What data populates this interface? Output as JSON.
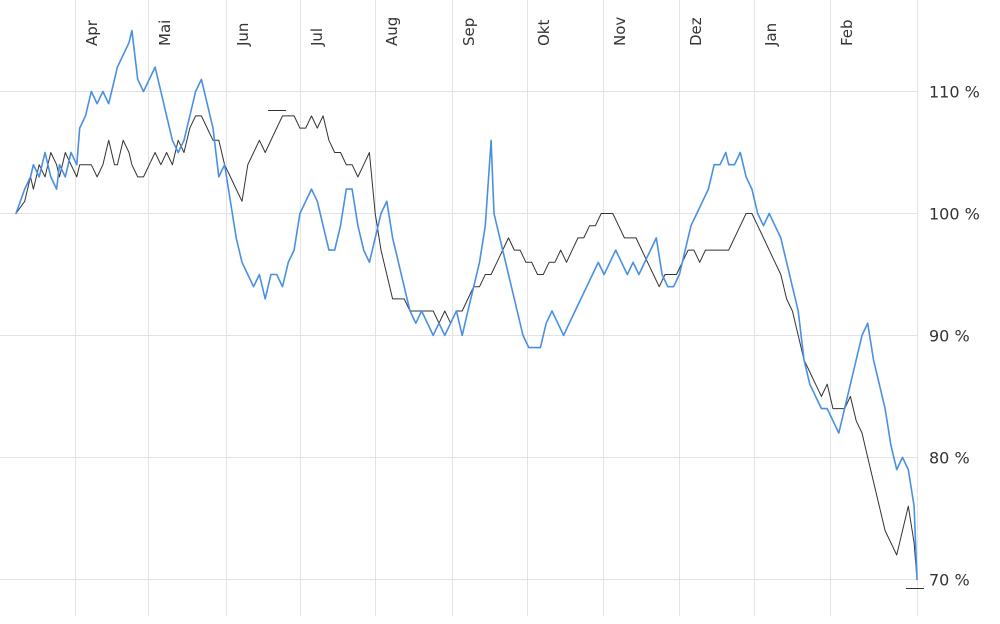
{
  "chart_data": {
    "type": "line",
    "title": "",
    "xlabel": "",
    "ylabel": "",
    "x_ticks": [
      "Apr",
      "Mai",
      "Jun",
      "Jul",
      "Aug",
      "Sep",
      "Okt",
      "Nov",
      "Dez",
      "Jan",
      "Feb"
    ],
    "y_ticks": [
      "110 %",
      "100 %",
      "90 %",
      "80 %",
      "70 %"
    ],
    "y_tick_values": [
      110,
      100,
      90,
      80,
      70
    ],
    "ylim": [
      67,
      117.5
    ],
    "grid": true,
    "colors": {
      "series_a": "#4a90e2",
      "series_b": "#333333"
    },
    "series": [
      {
        "key": "blue",
        "color": "#4a90e2",
        "values": [
          [
            0.0,
            100
          ],
          [
            0.3,
            102
          ],
          [
            0.5,
            103
          ],
          [
            0.6,
            104
          ],
          [
            0.8,
            103
          ],
          [
            1.0,
            105
          ],
          [
            1.2,
            103
          ],
          [
            1.4,
            102
          ],
          [
            1.5,
            104
          ],
          [
            1.7,
            103
          ],
          [
            1.9,
            105
          ],
          [
            2.1,
            104
          ],
          [
            2.2,
            107
          ],
          [
            2.4,
            108
          ],
          [
            2.6,
            110
          ],
          [
            2.8,
            109
          ],
          [
            3.0,
            110
          ],
          [
            3.2,
            109
          ],
          [
            3.4,
            111
          ],
          [
            3.5,
            112
          ],
          [
            3.7,
            113
          ],
          [
            3.9,
            114
          ],
          [
            4.0,
            115
          ],
          [
            4.2,
            111
          ],
          [
            4.4,
            110
          ],
          [
            4.6,
            111
          ],
          [
            4.8,
            112
          ],
          [
            5.0,
            110
          ],
          [
            5.2,
            108
          ],
          [
            5.4,
            106
          ],
          [
            5.6,
            105
          ],
          [
            5.8,
            106
          ],
          [
            6.0,
            108
          ],
          [
            6.2,
            110
          ],
          [
            6.4,
            111
          ],
          [
            6.6,
            109
          ],
          [
            6.8,
            107
          ],
          [
            7.0,
            103
          ],
          [
            7.2,
            104
          ],
          [
            7.4,
            101
          ],
          [
            7.6,
            98
          ],
          [
            7.8,
            96
          ],
          [
            8.0,
            95
          ],
          [
            8.2,
            94
          ],
          [
            8.4,
            95
          ],
          [
            8.6,
            93
          ],
          [
            8.8,
            95
          ],
          [
            9.0,
            95
          ],
          [
            9.2,
            94
          ],
          [
            9.4,
            96
          ],
          [
            9.6,
            97
          ],
          [
            9.8,
            100
          ],
          [
            10.0,
            101
          ],
          [
            10.2,
            102
          ],
          [
            10.4,
            101
          ],
          [
            10.6,
            99
          ],
          [
            10.8,
            97
          ],
          [
            11.0,
            97
          ],
          [
            11.2,
            99
          ],
          [
            11.4,
            102
          ],
          [
            11.6,
            102
          ],
          [
            11.8,
            99
          ],
          [
            12.0,
            97
          ],
          [
            12.2,
            96
          ],
          [
            12.4,
            98
          ],
          [
            12.6,
            100
          ],
          [
            12.8,
            101
          ],
          [
            13.0,
            98
          ],
          [
            13.2,
            96
          ],
          [
            13.4,
            94
          ],
          [
            13.6,
            92
          ],
          [
            13.8,
            91
          ],
          [
            14.0,
            92
          ],
          [
            14.2,
            91
          ],
          [
            14.4,
            90
          ],
          [
            14.6,
            91
          ],
          [
            14.8,
            90
          ],
          [
            15.0,
            91
          ],
          [
            15.2,
            92
          ],
          [
            15.4,
            90
          ],
          [
            15.6,
            92
          ],
          [
            15.8,
            94
          ],
          [
            16.0,
            96
          ],
          [
            16.2,
            99
          ],
          [
            16.4,
            106
          ],
          [
            16.5,
            100
          ],
          [
            16.7,
            98
          ],
          [
            16.9,
            96
          ],
          [
            17.1,
            94
          ],
          [
            17.3,
            92
          ],
          [
            17.5,
            90
          ],
          [
            17.7,
            89
          ],
          [
            17.9,
            89
          ],
          [
            18.1,
            89
          ],
          [
            18.3,
            91
          ],
          [
            18.5,
            92
          ],
          [
            18.7,
            91
          ],
          [
            18.9,
            90
          ],
          [
            19.1,
            91
          ],
          [
            19.3,
            92
          ],
          [
            19.5,
            93
          ],
          [
            19.7,
            94
          ],
          [
            19.9,
            95
          ],
          [
            20.1,
            96
          ],
          [
            20.3,
            95
          ],
          [
            20.5,
            96
          ],
          [
            20.7,
            97
          ],
          [
            20.9,
            96
          ],
          [
            21.1,
            95
          ],
          [
            21.3,
            96
          ],
          [
            21.5,
            95
          ],
          [
            21.7,
            96
          ],
          [
            21.9,
            97
          ],
          [
            22.1,
            98
          ],
          [
            22.3,
            95
          ],
          [
            22.5,
            94
          ],
          [
            22.7,
            94
          ],
          [
            22.9,
            95
          ],
          [
            23.1,
            97
          ],
          [
            23.3,
            99
          ],
          [
            23.5,
            100
          ],
          [
            23.7,
            101
          ],
          [
            23.9,
            102
          ],
          [
            24.1,
            104
          ],
          [
            24.3,
            104
          ],
          [
            24.5,
            105
          ],
          [
            24.6,
            104
          ],
          [
            24.8,
            104
          ],
          [
            25.0,
            105
          ],
          [
            25.2,
            103
          ],
          [
            25.4,
            102
          ],
          [
            25.6,
            100
          ],
          [
            25.8,
            99
          ],
          [
            26.0,
            100
          ],
          [
            26.2,
            99
          ],
          [
            26.4,
            98
          ],
          [
            26.6,
            96
          ],
          [
            26.8,
            94
          ],
          [
            27.0,
            92
          ],
          [
            27.2,
            88
          ],
          [
            27.4,
            86
          ],
          [
            27.6,
            85
          ],
          [
            27.8,
            84
          ],
          [
            28.0,
            84
          ],
          [
            28.2,
            83
          ],
          [
            28.4,
            82
          ],
          [
            28.6,
            84
          ],
          [
            28.8,
            86
          ],
          [
            29.0,
            88
          ],
          [
            29.2,
            90
          ],
          [
            29.4,
            91
          ],
          [
            29.6,
            88
          ],
          [
            29.8,
            86
          ],
          [
            30.0,
            84
          ],
          [
            30.2,
            81
          ],
          [
            30.4,
            79
          ],
          [
            30.6,
            80
          ],
          [
            30.8,
            79
          ],
          [
            31.0,
            76
          ],
          [
            31.1,
            70
          ]
        ]
      },
      {
        "key": "black",
        "color": "#333333",
        "values": [
          [
            0.0,
            100
          ],
          [
            0.3,
            101
          ],
          [
            0.5,
            103
          ],
          [
            0.6,
            102
          ],
          [
            0.8,
            104
          ],
          [
            1.0,
            103
          ],
          [
            1.2,
            105
          ],
          [
            1.4,
            104
          ],
          [
            1.5,
            103
          ],
          [
            1.7,
            105
          ],
          [
            1.9,
            104
          ],
          [
            2.1,
            103
          ],
          [
            2.2,
            104
          ],
          [
            2.4,
            104
          ],
          [
            2.6,
            104
          ],
          [
            2.8,
            103
          ],
          [
            3.0,
            104
          ],
          [
            3.2,
            106
          ],
          [
            3.4,
            104
          ],
          [
            3.5,
            104
          ],
          [
            3.7,
            106
          ],
          [
            3.9,
            105
          ],
          [
            4.0,
            104
          ],
          [
            4.2,
            103
          ],
          [
            4.4,
            103
          ],
          [
            4.6,
            104
          ],
          [
            4.8,
            105
          ],
          [
            5.0,
            104
          ],
          [
            5.2,
            105
          ],
          [
            5.4,
            104
          ],
          [
            5.6,
            106
          ],
          [
            5.8,
            105
          ],
          [
            6.0,
            107
          ],
          [
            6.2,
            108
          ],
          [
            6.4,
            108
          ],
          [
            6.6,
            107
          ],
          [
            6.8,
            106
          ],
          [
            7.0,
            106
          ],
          [
            7.2,
            104
          ],
          [
            7.4,
            103
          ],
          [
            7.6,
            102
          ],
          [
            7.8,
            101
          ],
          [
            8.0,
            104
          ],
          [
            8.2,
            105
          ],
          [
            8.4,
            106
          ],
          [
            8.6,
            105
          ],
          [
            8.8,
            106
          ],
          [
            9.0,
            107
          ],
          [
            9.2,
            108
          ],
          [
            9.4,
            108
          ],
          [
            9.6,
            108
          ],
          [
            9.8,
            107
          ],
          [
            10.0,
            107
          ],
          [
            10.2,
            108
          ],
          [
            10.4,
            107
          ],
          [
            10.6,
            108
          ],
          [
            10.8,
            106
          ],
          [
            11.0,
            105
          ],
          [
            11.2,
            105
          ],
          [
            11.4,
            104
          ],
          [
            11.6,
            104
          ],
          [
            11.8,
            103
          ],
          [
            12.0,
            104
          ],
          [
            12.2,
            105
          ],
          [
            12.4,
            100
          ],
          [
            12.6,
            97
          ],
          [
            12.8,
            95
          ],
          [
            13.0,
            93
          ],
          [
            13.2,
            93
          ],
          [
            13.4,
            93
          ],
          [
            13.6,
            92
          ],
          [
            13.8,
            92
          ],
          [
            14.0,
            92
          ],
          [
            14.2,
            92
          ],
          [
            14.4,
            92
          ],
          [
            14.6,
            91
          ],
          [
            14.8,
            92
          ],
          [
            15.0,
            91
          ],
          [
            15.2,
            92
          ],
          [
            15.4,
            92
          ],
          [
            15.6,
            93
          ],
          [
            15.8,
            94
          ],
          [
            16.0,
            94
          ],
          [
            16.2,
            95
          ],
          [
            16.4,
            95
          ],
          [
            16.6,
            96
          ],
          [
            16.8,
            97
          ],
          [
            17.0,
            98
          ],
          [
            17.2,
            97
          ],
          [
            17.4,
            97
          ],
          [
            17.6,
            96
          ],
          [
            17.8,
            96
          ],
          [
            18.0,
            95
          ],
          [
            18.2,
            95
          ],
          [
            18.4,
            96
          ],
          [
            18.6,
            96
          ],
          [
            18.8,
            97
          ],
          [
            19.0,
            96
          ],
          [
            19.2,
            97
          ],
          [
            19.4,
            98
          ],
          [
            19.6,
            98
          ],
          [
            19.8,
            99
          ],
          [
            20.0,
            99
          ],
          [
            20.2,
            100
          ],
          [
            20.4,
            100
          ],
          [
            20.6,
            100
          ],
          [
            20.8,
            99
          ],
          [
            21.0,
            98
          ],
          [
            21.2,
            98
          ],
          [
            21.4,
            98
          ],
          [
            21.6,
            97
          ],
          [
            21.8,
            96
          ],
          [
            22.0,
            95
          ],
          [
            22.2,
            94
          ],
          [
            22.4,
            95
          ],
          [
            22.6,
            95
          ],
          [
            22.8,
            95
          ],
          [
            23.0,
            96
          ],
          [
            23.2,
            97
          ],
          [
            23.4,
            97
          ],
          [
            23.6,
            96
          ],
          [
            23.8,
            97
          ],
          [
            24.0,
            97
          ],
          [
            24.2,
            97
          ],
          [
            24.4,
            97
          ],
          [
            24.6,
            97
          ],
          [
            24.8,
            98
          ],
          [
            25.0,
            99
          ],
          [
            25.2,
            100
          ],
          [
            25.4,
            100
          ],
          [
            25.6,
            99
          ],
          [
            25.8,
            98
          ],
          [
            26.0,
            97
          ],
          [
            26.2,
            96
          ],
          [
            26.4,
            95
          ],
          [
            26.6,
            93
          ],
          [
            26.8,
            92
          ],
          [
            27.0,
            90
          ],
          [
            27.2,
            88
          ],
          [
            27.4,
            87
          ],
          [
            27.6,
            86
          ],
          [
            27.8,
            85
          ],
          [
            28.0,
            86
          ],
          [
            28.2,
            84
          ],
          [
            28.4,
            84
          ],
          [
            28.6,
            84
          ],
          [
            28.8,
            85
          ],
          [
            29.0,
            83
          ],
          [
            29.2,
            82
          ],
          [
            29.4,
            80
          ],
          [
            29.6,
            78
          ],
          [
            29.8,
            76
          ],
          [
            30.0,
            74
          ],
          [
            30.2,
            73
          ],
          [
            30.4,
            72
          ],
          [
            30.6,
            74
          ],
          [
            30.8,
            76
          ],
          [
            31.0,
            73
          ],
          [
            31.1,
            70
          ]
        ]
      }
    ]
  }
}
